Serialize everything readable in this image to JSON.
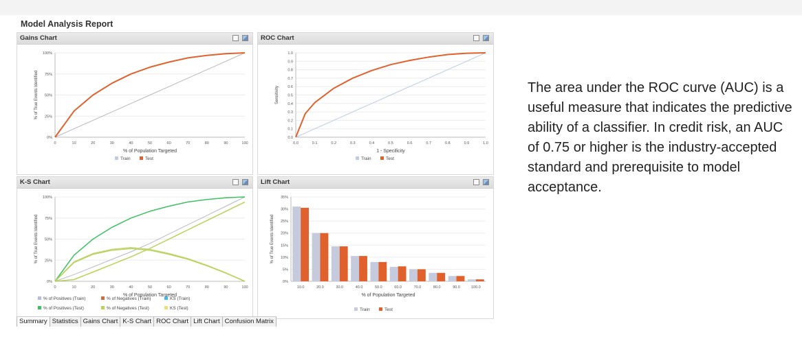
{
  "report": {
    "title": "Model Analysis Report"
  },
  "tabs": [
    "Summary",
    "Statistics",
    "Gains Chart",
    "K-S Chart",
    "ROC Chart",
    "Lift Chart",
    "Confusion Matrix"
  ],
  "note": "The area under the ROC curve (AUC) is a useful measure that indicates the predictive ability of a classifier. In credit risk, an AUC of 0.75 or higher is the industry-accepted standard and prerequisite to model acceptance.",
  "colors": {
    "train": "#c5cbdc",
    "test": "#e0612c",
    "pos_train": "#47b5e6",
    "neg_train": "#d06a40",
    "pos_test": "#3cc061",
    "neg_test": "#b7d255",
    "ks_test": "#e6e07a"
  },
  "chart_data": [
    {
      "type": "line",
      "title": "Gains Chart",
      "xlabel": "% of Population Targeted",
      "ylabel": "% of True Events Identified",
      "xticks": [
        "0",
        "10",
        "20",
        "30",
        "40",
        "50",
        "60",
        "70",
        "80",
        "90",
        "100"
      ],
      "yticks": [
        "0%",
        "25%",
        "50%",
        "75%",
        "100%"
      ],
      "xlim": [
        0,
        100
      ],
      "ylim": [
        0,
        100
      ],
      "x": [
        0,
        10,
        20,
        30,
        40,
        50,
        60,
        70,
        80,
        90,
        100
      ],
      "series": [
        {
          "name": "Train",
          "values": [
            0,
            10,
            20,
            30,
            40,
            50,
            60,
            70,
            80,
            90,
            100
          ]
        },
        {
          "name": "Test",
          "values": [
            0,
            31,
            50,
            64,
            75,
            83,
            89,
            94,
            97,
            99,
            100
          ]
        }
      ],
      "legend": [
        "Train",
        "Test"
      ]
    },
    {
      "type": "line",
      "title": "ROC Chart",
      "xlabel": "1 - Specificity",
      "ylabel": "Sensitivity",
      "xticks": [
        "0.0",
        "0.1",
        "0.2",
        "0.3",
        "0.4",
        "0.5",
        "0.6",
        "0.7",
        "0.8",
        "0.9",
        "1.0"
      ],
      "yticks": [
        "0.0",
        "0.1",
        "0.2",
        "0.3",
        "0.4",
        "0.5",
        "0.6",
        "0.7",
        "0.8",
        "0.9",
        "1.0"
      ],
      "xlim": [
        0,
        1
      ],
      "ylim": [
        0,
        1
      ],
      "x": [
        0,
        0.05,
        0.1,
        0.2,
        0.3,
        0.4,
        0.5,
        0.6,
        0.7,
        0.8,
        0.9,
        1.0
      ],
      "series": [
        {
          "name": "Train",
          "values": [
            0,
            0.05,
            0.1,
            0.2,
            0.3,
            0.4,
            0.5,
            0.6,
            0.7,
            0.8,
            0.9,
            1.0
          ]
        },
        {
          "name": "Test",
          "values": [
            0,
            0.28,
            0.41,
            0.58,
            0.7,
            0.79,
            0.86,
            0.91,
            0.95,
            0.98,
            0.995,
            1.0
          ]
        }
      ],
      "legend": [
        "Train",
        "Test"
      ]
    },
    {
      "type": "line",
      "title": "K-S Chart",
      "xlabel": "% of Population Targeted",
      "ylabel": "% of True Events Identified",
      "xticks": [
        "0",
        "10",
        "20",
        "30",
        "40",
        "50",
        "60",
        "70",
        "80",
        "90",
        "100"
      ],
      "yticks": [
        "0%",
        "25%",
        "50%",
        "75%",
        "100%"
      ],
      "xlim": [
        0,
        100
      ],
      "ylim": [
        0,
        100
      ],
      "x": [
        0,
        10,
        20,
        30,
        40,
        50,
        60,
        70,
        80,
        90,
        100
      ],
      "series": [
        {
          "name": "% of Positives (Train)",
          "values": [
            0,
            31,
            50,
            64,
            75,
            83,
            89,
            94,
            97,
            99,
            100
          ]
        },
        {
          "name": "% of Negatives (Train)",
          "values": [
            0,
            8,
            17,
            26,
            35,
            45,
            56,
            67,
            78,
            89,
            100
          ]
        },
        {
          "name": "KS (Train)",
          "values": [
            0,
            23,
            33,
            38,
            40,
            38,
            33,
            27,
            19,
            10,
            0
          ]
        },
        {
          "name": "% of Positives (Test)",
          "values": [
            0,
            31,
            50,
            64,
            75,
            83,
            89,
            94,
            97,
            99,
            100
          ]
        },
        {
          "name": "% of Negatives (Test)",
          "values": [
            0,
            8,
            17,
            26,
            35,
            45,
            56,
            67,
            78,
            89,
            100
          ]
        },
        {
          "name": "KS (Test)",
          "values": [
            0,
            23,
            33,
            38,
            40,
            38,
            33,
            27,
            19,
            10,
            0
          ]
        }
      ],
      "legend": [
        "% of Positives (Train)",
        "% of Negatives (Train)",
        "KS (Train)",
        "% of Positives (Test)",
        "% of Negatives (Test)",
        "KS (Test)"
      ]
    },
    {
      "type": "bar",
      "title": "Lift Chart",
      "xlabel": "% of Population Targeted",
      "ylabel": "% of True Events Identified",
      "categories": [
        "10.0",
        "20.0",
        "30.0",
        "40.0",
        "50.0",
        "60.0",
        "70.0",
        "80.0",
        "90.0",
        "100.0"
      ],
      "yticks": [
        "0%",
        "5%",
        "10%",
        "15%",
        "20%",
        "25%",
        "30%",
        "35%"
      ],
      "ylim": [
        0,
        35
      ],
      "series": [
        {
          "name": "Train",
          "values": [
            31,
            20,
            14.5,
            10.5,
            8,
            6,
            5,
            3.5,
            2.2,
            0.8
          ]
        },
        {
          "name": "Test",
          "values": [
            30.5,
            20,
            14.5,
            10.5,
            8,
            6.2,
            5,
            3.5,
            2.2,
            0.8
          ]
        }
      ],
      "legend": [
        "Train",
        "Test"
      ]
    }
  ]
}
